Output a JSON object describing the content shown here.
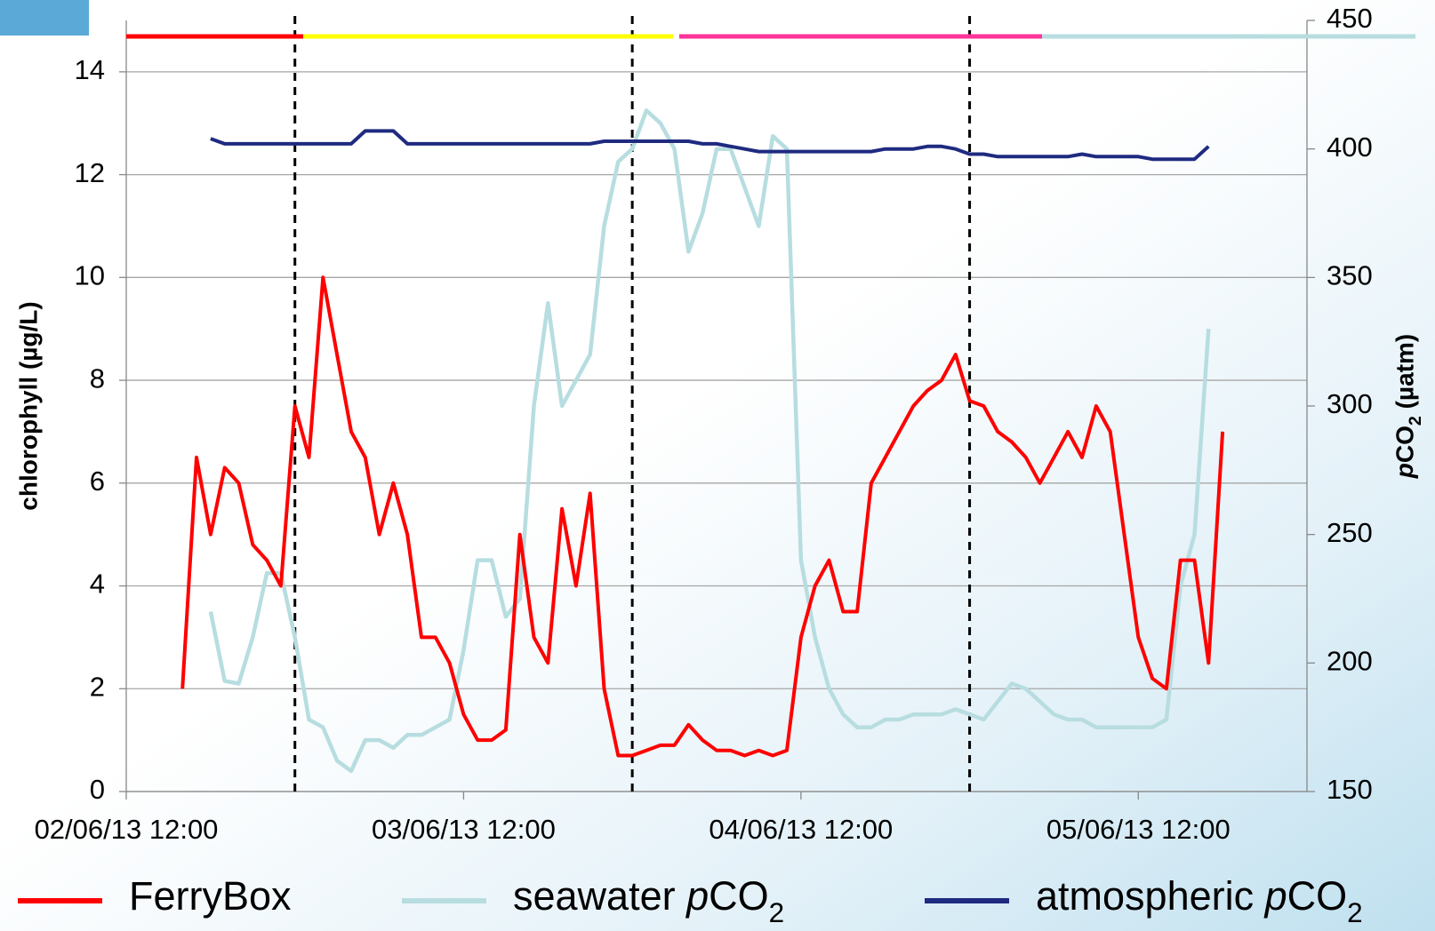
{
  "chart_data": {
    "type": "line",
    "xlabel_format": "dd/mm/yy HH:MM",
    "ylabel": "chlorophyll (µg/L)",
    "y2label": "pCO2 (µatm)",
    "xlim": [
      "02/06/13 12:00",
      "06/06/13 00:00"
    ],
    "xticks": [
      "02/06/13 12:00",
      "03/06/13 12:00",
      "04/06/13 12:00",
      "05/06/13 12:00"
    ],
    "ylim": [
      0,
      15
    ],
    "yticks": [
      0,
      2,
      4,
      6,
      8,
      10,
      12,
      14
    ],
    "y2lim": [
      150,
      450
    ],
    "y2ticks": [
      150,
      200,
      250,
      300,
      350,
      400,
      450
    ],
    "grid": true,
    "vlines": [
      "03/06/13 00:00",
      "04/06/13 00:00",
      "05/06/13 00:00"
    ],
    "x": [
      "02/06/13 16:00",
      "02/06/13 17:00",
      "02/06/13 18:00",
      "02/06/13 19:00",
      "02/06/13 20:00",
      "02/06/13 21:00",
      "02/06/13 22:00",
      "02/06/13 23:00",
      "03/06/13 00:00",
      "03/06/13 01:00",
      "03/06/13 02:00",
      "03/06/13 03:00",
      "03/06/13 04:00",
      "03/06/13 05:00",
      "03/06/13 06:00",
      "03/06/13 07:00",
      "03/06/13 08:00",
      "03/06/13 09:00",
      "03/06/13 10:00",
      "03/06/13 11:00",
      "03/06/13 12:00",
      "03/06/13 13:00",
      "03/06/13 14:00",
      "03/06/13 15:00",
      "03/06/13 16:00",
      "03/06/13 17:00",
      "03/06/13 18:00",
      "03/06/13 19:00",
      "03/06/13 20:00",
      "03/06/13 21:00",
      "03/06/13 22:00",
      "03/06/13 23:00",
      "04/06/13 00:00",
      "04/06/13 01:00",
      "04/06/13 02:00",
      "04/06/13 03:00",
      "04/06/13 04:00",
      "04/06/13 05:00",
      "04/06/13 06:00",
      "04/06/13 07:00",
      "04/06/13 08:00",
      "04/06/13 09:00",
      "04/06/13 10:00",
      "04/06/13 11:00",
      "04/06/13 12:00",
      "04/06/13 13:00",
      "04/06/13 14:00",
      "04/06/13 15:00",
      "04/06/13 16:00",
      "04/06/13 17:00",
      "04/06/13 18:00",
      "04/06/13 19:00",
      "04/06/13 20:00",
      "04/06/13 21:00",
      "04/06/13 22:00",
      "04/06/13 23:00",
      "05/06/13 00:00",
      "05/06/13 01:00",
      "05/06/13 02:00",
      "05/06/13 03:00",
      "05/06/13 04:00",
      "05/06/13 05:00",
      "05/06/13 06:00",
      "05/06/13 07:00",
      "05/06/13 08:00",
      "05/06/13 09:00",
      "05/06/13 10:00",
      "05/06/13 11:00",
      "05/06/13 12:00",
      "05/06/13 13:00",
      "05/06/13 14:00",
      "05/06/13 15:00",
      "05/06/13 16:00",
      "05/06/13 17:00",
      "05/06/13 18:00"
    ],
    "series": [
      {
        "name": "FerryBox",
        "color": "#ff0000",
        "axis": "y",
        "values": [
          2,
          6.5,
          5,
          6.3,
          6,
          4.8,
          4.5,
          4,
          7.5,
          6.5,
          10,
          8.5,
          7,
          6.5,
          5,
          6,
          5,
          3,
          3,
          2.5,
          1.5,
          1,
          1,
          1.2,
          5,
          3,
          2.5,
          5.5,
          4,
          5.8,
          2,
          0.7,
          0.7,
          0.8,
          0.9,
          0.9,
          1.3,
          1,
          0.8,
          0.8,
          0.7,
          0.8,
          0.7,
          0.8,
          3,
          4,
          4.5,
          3.5,
          3.5,
          6,
          6.5,
          7,
          7.5,
          7.8,
          8,
          8.5,
          7.6,
          7.5,
          7,
          6.8,
          6.5,
          6,
          6.5,
          7,
          6.5,
          7.5,
          7,
          5,
          3,
          2.2,
          2,
          4.5,
          4.5,
          2.5,
          7
        ]
      },
      {
        "name": "seawater pCO2",
        "color": "#b7dde0",
        "axis": "y2",
        "values": [
          null,
          null,
          220,
          193,
          192,
          210,
          235,
          235,
          210,
          178,
          175,
          162,
          158,
          170,
          170,
          167,
          172,
          172,
          175,
          178,
          205,
          240,
          240,
          218,
          225,
          300,
          340,
          300,
          310,
          320,
          370,
          395,
          400,
          415,
          410,
          400,
          360,
          375,
          400,
          400,
          385,
          370,
          405,
          400,
          240,
          210,
          190,
          180,
          175,
          175,
          178,
          178,
          180,
          180,
          180,
          182,
          180,
          178,
          185,
          192,
          190,
          185,
          180,
          178,
          178,
          175,
          175,
          175,
          175,
          175,
          178,
          230,
          250,
          330,
          null
        ]
      },
      {
        "name": "atmospheric pCO2",
        "color": "#1f2a80",
        "axis": "y2",
        "values": [
          null,
          null,
          404,
          402,
          402,
          402,
          402,
          402,
          402,
          402,
          402,
          402,
          402,
          407,
          407,
          407,
          402,
          402,
          402,
          402,
          402,
          402,
          402,
          402,
          402,
          402,
          402,
          402,
          402,
          402,
          403,
          403,
          403,
          403,
          403,
          403,
          403,
          402,
          402,
          401,
          400,
          399,
          399,
          399,
          399,
          399,
          399,
          399,
          399,
          399,
          400,
          400,
          400,
          401,
          401,
          400,
          398,
          398,
          397,
          397,
          397,
          397,
          397,
          397,
          398,
          397,
          397,
          397,
          397,
          396,
          396,
          396,
          396,
          401,
          null
        ]
      }
    ]
  }
}
